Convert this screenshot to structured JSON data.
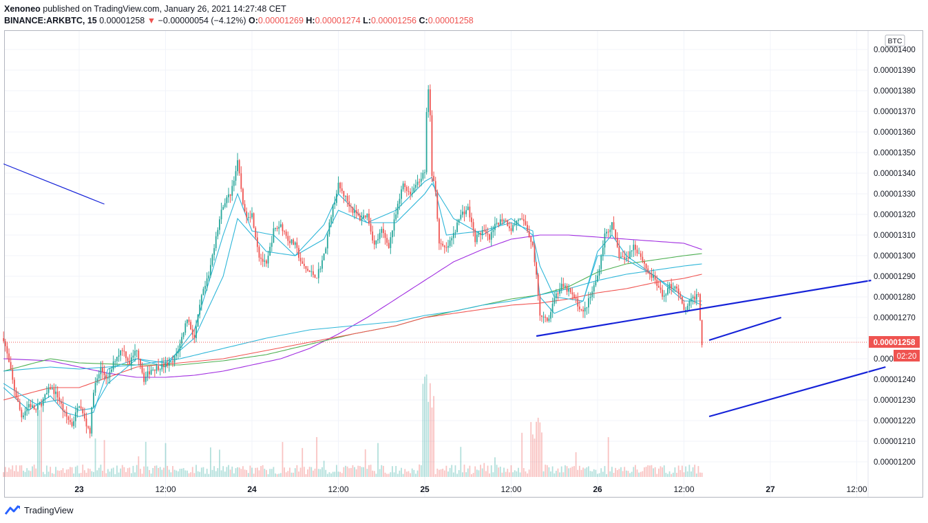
{
  "header": {
    "publisher": "Xenoneo",
    "published_text": " published on TradingView.com, January 26, 2021 14:27:48 CET",
    "symbol": "BINANCE:ARKBTC, 15",
    "last": "0.00001258",
    "change_arrow": "▼",
    "change": "−0.00000054 (−4.12%)",
    "o_label": "O:",
    "o_value": "0.00001269",
    "h_label": "H:",
    "h_value": "0.00001274",
    "l_label": "L:",
    "l_value": "0.00001256",
    "c_label": "C:",
    "c_value": "0.00001258"
  },
  "price_badge": "0.00001258",
  "countdown_badge": "02:20",
  "currency_badge": "BTC",
  "footer": {
    "brand": "TradingView"
  },
  "colors": {
    "up": "#26a69a",
    "down": "#ef5350",
    "ma_cyan": "#2bb5d8",
    "ma_purple": "#a02ce0",
    "ma_green": "#4caf50",
    "ma_red": "#f0524f",
    "trendline": "#1522d8",
    "grid": "#f0f3fa"
  },
  "chart_data": {
    "type": "candlestick",
    "title": "",
    "y_ticks": [
      "0.00001200",
      "0.00001210",
      "0.00001220",
      "0.00001230",
      "0.00001240",
      "0.00001250",
      "0.00001260",
      "0.00001270",
      "0.00001280",
      "0.00001290",
      "0.00001300",
      "0.00001310",
      "0.00001320",
      "0.00001330",
      "0.00001340",
      "0.00001350",
      "0.00001360",
      "0.00001370",
      "0.00001380",
      "0.00001390",
      "0.00001400"
    ],
    "y_tick_labels": [
      "0.00001200",
      "0.00001210",
      "0.00001220",
      "0.00001230",
      "0.00001240",
      "0.00001250",
      "0.00001260",
      "0.00001270",
      "0.00001280",
      "0.00001290",
      "0.00001300",
      "0.00001310",
      "0.00001320",
      "0.00001330",
      "0.00001340",
      "0.00001350",
      "0.00001360",
      "0.00001370",
      "0.00001380",
      "0.00001390",
      "0.00001400"
    ],
    "ylim": [
      1.2e-05,
      1.4e-05
    ],
    "time_ticks": [
      "23",
      "12:00",
      "24",
      "12:00",
      "25",
      "12:00",
      "26",
      "12:00",
      "27",
      "12:00"
    ],
    "time_tick_hours": [
      0,
      12,
      24,
      36,
      48,
      60,
      72,
      84,
      96,
      108
    ],
    "time_tick_bold": [
      true,
      false,
      true,
      false,
      true,
      false,
      true,
      false,
      true,
      false
    ],
    "x_unit": "hours since Jan 23 00:00",
    "xlim": [
      -10.5,
      112
    ],
    "last_bar_hour": 86.5,
    "price_anchors": [
      [
        -10.5,
        1260
      ],
      [
        -10,
        1252
      ],
      [
        -9,
        1235
      ],
      [
        -8,
        1222
      ],
      [
        -7,
        1228
      ],
      [
        -6,
        1225
      ],
      [
        -5,
        1230
      ],
      [
        -4,
        1236
      ],
      [
        -3,
        1232
      ],
      [
        -2,
        1223
      ],
      [
        -1,
        1218
      ],
      [
        0,
        1228
      ],
      [
        1,
        1218
      ],
      [
        1.5,
        1215
      ],
      [
        2,
        1235
      ],
      [
        3,
        1245
      ],
      [
        4,
        1240
      ],
      [
        5,
        1250
      ],
      [
        6,
        1255
      ],
      [
        7,
        1248
      ],
      [
        8,
        1255
      ],
      [
        9,
        1240
      ],
      [
        10,
        1245
      ],
      [
        11,
        1246
      ],
      [
        12,
        1247
      ],
      [
        13,
        1248
      ],
      [
        14,
        1257
      ],
      [
        15,
        1270
      ],
      [
        16,
        1260
      ],
      [
        17,
        1280
      ],
      [
        18,
        1290
      ],
      [
        19,
        1310
      ],
      [
        20,
        1325
      ],
      [
        21,
        1330
      ],
      [
        22,
        1345
      ],
      [
        23,
        1320
      ],
      [
        24,
        1320
      ],
      [
        25,
        1300
      ],
      [
        26,
        1295
      ],
      [
        27,
        1312
      ],
      [
        28,
        1315
      ],
      [
        29,
        1308
      ],
      [
        30,
        1305
      ],
      [
        31,
        1295
      ],
      [
        32,
        1292
      ],
      [
        33,
        1290
      ],
      [
        34,
        1300
      ],
      [
        35,
        1320
      ],
      [
        36,
        1334
      ],
      [
        37,
        1328
      ],
      [
        38,
        1322
      ],
      [
        39,
        1318
      ],
      [
        40,
        1320
      ],
      [
        41,
        1305
      ],
      [
        42,
        1312
      ],
      [
        43,
        1305
      ],
      [
        44,
        1320
      ],
      [
        45,
        1335
      ],
      [
        46,
        1330
      ],
      [
        47,
        1336
      ],
      [
        48,
        1340
      ],
      [
        48.3,
        1375
      ],
      [
        48.6,
        1383
      ],
      [
        49,
        1340
      ],
      [
        49.5,
        1332
      ],
      [
        50,
        1305
      ],
      [
        51,
        1303
      ],
      [
        52,
        1310
      ],
      [
        53,
        1320
      ],
      [
        54,
        1323
      ],
      [
        55,
        1308
      ],
      [
        56,
        1312
      ],
      [
        57,
        1308
      ],
      [
        58,
        1316
      ],
      [
        59,
        1318
      ],
      [
        60,
        1313
      ],
      [
        61,
        1318
      ],
      [
        62,
        1315
      ],
      [
        63,
        1305
      ],
      [
        63.5,
        1290
      ],
      [
        64,
        1270
      ],
      [
        65,
        1268
      ],
      [
        66,
        1280
      ],
      [
        67,
        1285
      ],
      [
        68,
        1283
      ],
      [
        69,
        1278
      ],
      [
        70,
        1272
      ],
      [
        71,
        1280
      ],
      [
        72,
        1290
      ],
      [
        73,
        1310
      ],
      [
        74,
        1315
      ],
      [
        75,
        1300
      ],
      [
        76,
        1298
      ],
      [
        77,
        1305
      ],
      [
        78,
        1300
      ],
      [
        79,
        1292
      ],
      [
        80,
        1288
      ],
      [
        81,
        1280
      ],
      [
        82,
        1285
      ],
      [
        83,
        1285
      ],
      [
        84,
        1273
      ],
      [
        85,
        1278
      ],
      [
        86,
        1282
      ],
      [
        86.5,
        1258
      ]
    ],
    "volume_profile": "bars at bottom of pane; tallest near hour 48",
    "trendlines": [
      {
        "from": [
          -10.5,
          1344.5
        ],
        "to": [
          3.5,
          1325
        ]
      },
      {
        "from": [
          63.5,
          1261
        ],
        "to": [
          110,
          1288
        ]
      },
      {
        "from": [
          87.5,
          1259
        ],
        "to": [
          97.5,
          1270
        ]
      },
      {
        "from": [
          87.5,
          1222
        ],
        "to": [
          112,
          1246
        ]
      }
    ],
    "moving_averages": [
      {
        "color": "ma_purple",
        "points": [
          [
            -10.5,
            1250
          ],
          [
            -4,
            1249
          ],
          [
            0,
            1246
          ],
          [
            4,
            1243
          ],
          [
            8,
            1241
          ],
          [
            12,
            1241
          ],
          [
            16,
            1242
          ],
          [
            20,
            1244
          ],
          [
            24,
            1247
          ],
          [
            28,
            1250
          ],
          [
            32,
            1255
          ],
          [
            36,
            1262
          ],
          [
            40,
            1270
          ],
          [
            44,
            1279
          ],
          [
            48,
            1288
          ],
          [
            52,
            1297
          ],
          [
            56,
            1303
          ],
          [
            60,
            1308
          ],
          [
            64,
            1310
          ],
          [
            68,
            1310
          ],
          [
            72,
            1309
          ],
          [
            76,
            1308
          ],
          [
            80,
            1307
          ],
          [
            84,
            1306
          ],
          [
            86.5,
            1303
          ]
        ]
      },
      {
        "color": "ma_green",
        "points": [
          [
            -10.5,
            1244
          ],
          [
            -4,
            1250
          ],
          [
            0,
            1248
          ],
          [
            8,
            1247
          ],
          [
            14,
            1247
          ],
          [
            20,
            1249
          ],
          [
            26,
            1252
          ],
          [
            32,
            1257
          ],
          [
            38,
            1262
          ],
          [
            44,
            1266
          ],
          [
            48,
            1270
          ],
          [
            52,
            1273
          ],
          [
            56,
            1276
          ],
          [
            60,
            1279
          ],
          [
            64,
            1281
          ],
          [
            68,
            1285
          ],
          [
            72,
            1292
          ],
          [
            76,
            1296
          ],
          [
            80,
            1298
          ],
          [
            84,
            1300
          ],
          [
            86.5,
            1301
          ]
        ]
      },
      {
        "color": "ma_red",
        "points": [
          [
            -10.5,
            1230
          ],
          [
            -4,
            1236
          ],
          [
            0,
            1236
          ],
          [
            8,
            1246
          ],
          [
            14,
            1248
          ],
          [
            20,
            1250
          ],
          [
            26,
            1254
          ],
          [
            32,
            1258
          ],
          [
            38,
            1262
          ],
          [
            44,
            1266
          ],
          [
            48,
            1270
          ],
          [
            52,
            1272
          ],
          [
            56,
            1274
          ],
          [
            60,
            1276
          ],
          [
            64,
            1277
          ],
          [
            68,
            1279
          ],
          [
            72,
            1282
          ],
          [
            76,
            1284
          ],
          [
            80,
            1287
          ],
          [
            84,
            1289
          ],
          [
            86.5,
            1291
          ]
        ]
      },
      {
        "color": "ma_cyan",
        "points": [
          [
            -10.5,
            1244
          ],
          [
            -4,
            1246
          ],
          [
            0,
            1245
          ],
          [
            8,
            1247
          ],
          [
            14,
            1250
          ],
          [
            20,
            1255
          ],
          [
            26,
            1260
          ],
          [
            32,
            1264
          ],
          [
            38,
            1266
          ],
          [
            44,
            1268
          ],
          [
            48,
            1271
          ],
          [
            52,
            1273
          ],
          [
            56,
            1276
          ],
          [
            60,
            1278
          ],
          [
            64,
            1281
          ],
          [
            68,
            1284
          ],
          [
            72,
            1288
          ],
          [
            76,
            1291
          ],
          [
            80,
            1293
          ],
          [
            84,
            1295
          ],
          [
            86.5,
            1296
          ]
        ]
      },
      {
        "color": "ma_cyan",
        "points": [
          [
            -10.5,
            1238
          ],
          [
            -6,
            1228
          ],
          [
            -3,
            1230
          ],
          [
            0,
            1225
          ],
          [
            2,
            1226
          ],
          [
            4,
            1238
          ],
          [
            8,
            1250
          ],
          [
            12,
            1248
          ],
          [
            16,
            1260
          ],
          [
            20,
            1290
          ],
          [
            22,
            1318
          ],
          [
            26,
            1302
          ],
          [
            30,
            1300
          ],
          [
            34,
            1308
          ],
          [
            36,
            1322
          ],
          [
            40,
            1316
          ],
          [
            44,
            1316
          ],
          [
            48,
            1330
          ],
          [
            49,
            1335
          ],
          [
            52,
            1318
          ],
          [
            56,
            1310
          ],
          [
            60,
            1318
          ],
          [
            63,
            1310
          ],
          [
            64,
            1295
          ],
          [
            66,
            1280
          ],
          [
            70,
            1278
          ],
          [
            72,
            1300
          ],
          [
            74,
            1300
          ],
          [
            76,
            1298
          ],
          [
            80,
            1290
          ],
          [
            84,
            1280
          ],
          [
            86.5,
            1276
          ]
        ]
      },
      {
        "color": "ma_cyan",
        "points": [
          [
            -10.5,
            1236
          ],
          [
            -7,
            1225
          ],
          [
            -4,
            1232
          ],
          [
            -2,
            1224
          ],
          [
            0,
            1222
          ],
          [
            2,
            1224
          ],
          [
            4,
            1245
          ],
          [
            8,
            1250
          ],
          [
            12,
            1246
          ],
          [
            16,
            1264
          ],
          [
            20,
            1310
          ],
          [
            22,
            1330
          ],
          [
            24,
            1312
          ],
          [
            27,
            1310
          ],
          [
            30,
            1300
          ],
          [
            34,
            1315
          ],
          [
            36,
            1330
          ],
          [
            40,
            1316
          ],
          [
            44,
            1322
          ],
          [
            48,
            1336
          ],
          [
            49,
            1338
          ],
          [
            51,
            1310
          ],
          [
            56,
            1312
          ],
          [
            60,
            1316
          ],
          [
            63,
            1312
          ],
          [
            64,
            1280
          ],
          [
            66,
            1272
          ],
          [
            70,
            1278
          ],
          [
            72,
            1302
          ],
          [
            74,
            1310
          ],
          [
            76,
            1300
          ],
          [
            80,
            1290
          ],
          [
            84,
            1278
          ],
          [
            86.5,
            1278
          ]
        ]
      }
    ]
  }
}
